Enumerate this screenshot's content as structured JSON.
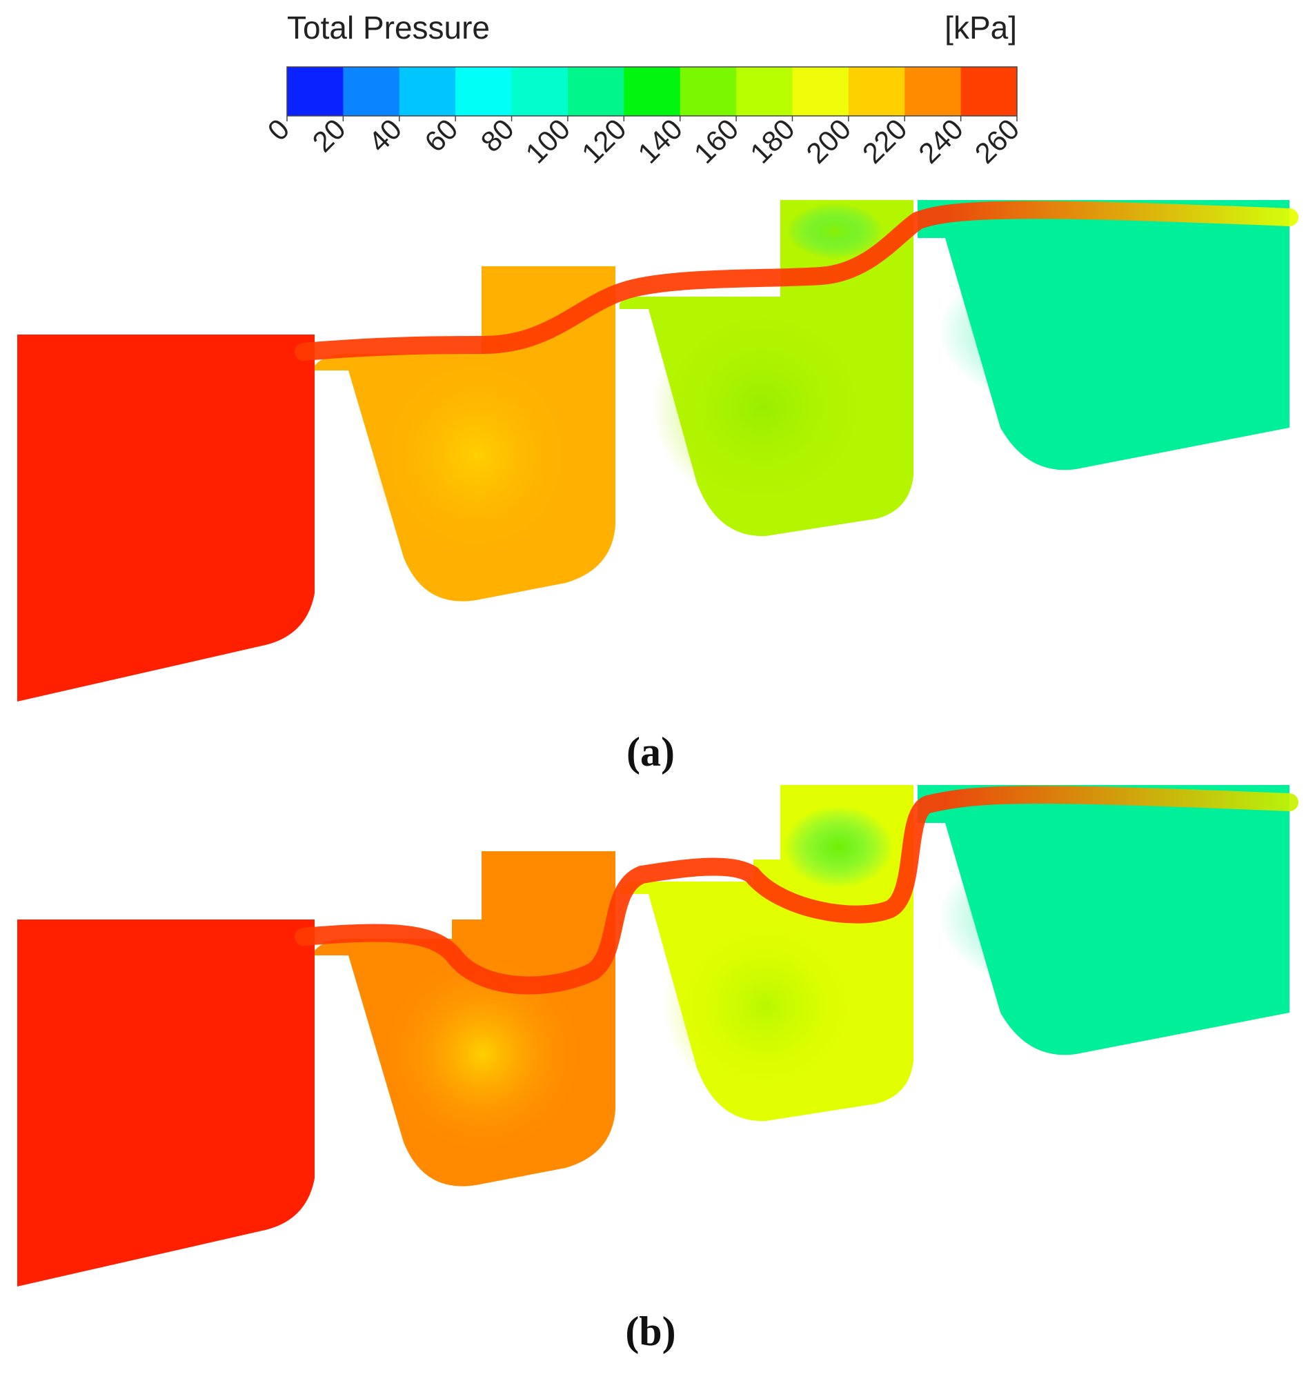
{
  "legend": {
    "title": "Total Pressure",
    "unit": "[kPa]",
    "ticks": [
      "0",
      "20",
      "40",
      "60",
      "80",
      "100",
      "120",
      "140",
      "160",
      "180",
      "200",
      "220",
      "240",
      "260"
    ],
    "colors": [
      "#0a22ff",
      "#0a84ff",
      "#00c6ff",
      "#00fff6",
      "#00ffcc",
      "#00f58a",
      "#00f50f",
      "#7af800",
      "#b8ff00",
      "#eefe0a",
      "#ffd000",
      "#ff8c00",
      "#ff3f00"
    ]
  },
  "panels": [
    {
      "label": "(a)",
      "fills": {
        "cavity1": "#ff2000",
        "cavity2": "#ffb000",
        "cavity2_center": "#ffd000",
        "cavity3": "#b4f500",
        "cavity3_center": "#98ee00",
        "cavity4": "#00f09a",
        "cavity4_center": "#8cf000",
        "jet": "#ff3a00",
        "jet_end": "#e6ff00"
      }
    },
    {
      "label": "(b)",
      "fills": {
        "cavity1": "#ff2000",
        "cavity2": "#ff8a00",
        "cavity2_center": "#ffd000",
        "cavity3": "#e2ff00",
        "cavity3_center": "#b8f800",
        "cavity4": "#00f09a",
        "cavity4_center": "#74ef00",
        "jet": "#ff3a00",
        "jet_end": "#c8f200"
      }
    }
  ]
}
